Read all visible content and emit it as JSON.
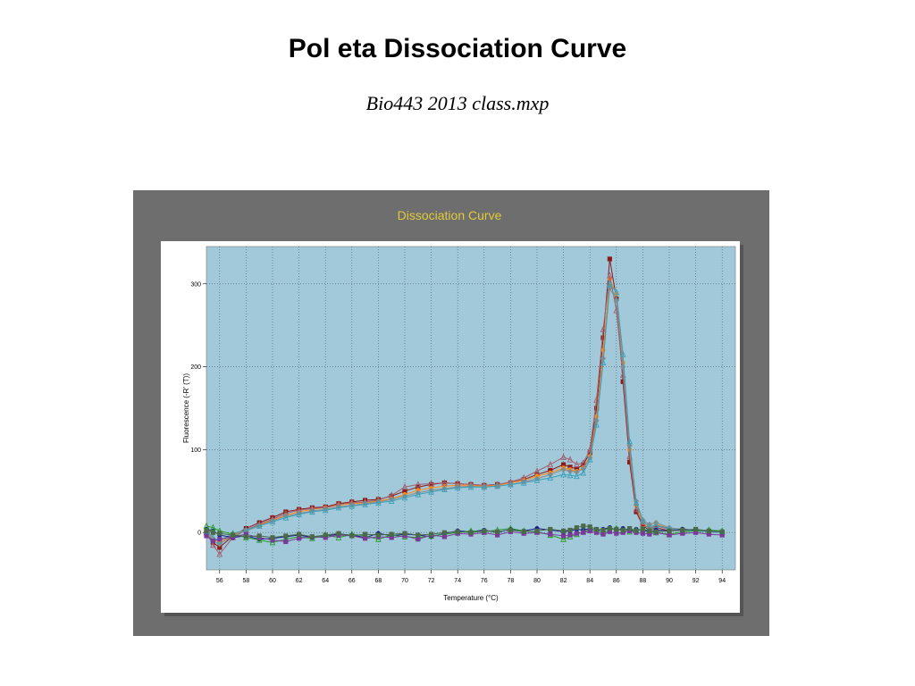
{
  "slide": {
    "title": "Pol eta Dissociation Curve",
    "subtitle": "Bio443 2013 class.mxp"
  },
  "colors": {
    "frame": "#6e6e6e",
    "plot_background": "#a2c9da",
    "chart_title": "#e2c93a"
  },
  "chart_data": {
    "type": "line",
    "title": "Dissociation Curve",
    "xlabel": "Temperature (°C)",
    "ylabel": "Fluorescence (-R' (T))",
    "xlim": [
      55,
      95
    ],
    "ylim": [
      -45,
      345
    ],
    "xticks": [
      56,
      58,
      60,
      62,
      64,
      66,
      68,
      70,
      72,
      74,
      76,
      78,
      80,
      82,
      84,
      86,
      88,
      90,
      92,
      94
    ],
    "yticks": [
      0,
      100,
      200,
      300
    ],
    "grid": true,
    "legend": "none",
    "x": [
      55,
      55.5,
      56,
      57,
      58,
      59,
      60,
      61,
      62,
      63,
      64,
      65,
      66,
      67,
      68,
      69,
      70,
      71,
      72,
      73,
      74,
      75,
      76,
      77,
      78,
      79,
      80,
      81,
      82,
      82.5,
      83,
      83.5,
      84,
      84.5,
      85,
      85.5,
      86,
      86.5,
      87,
      87.5,
      88,
      88.5,
      89,
      90,
      91,
      92,
      93,
      94
    ],
    "series": [
      {
        "color": "#8b1a1a",
        "marker": "square",
        "values": [
          3,
          -12,
          -18,
          -4,
          5,
          12,
          18,
          25,
          28,
          30,
          31,
          35,
          37,
          39,
          40,
          44,
          50,
          55,
          58,
          60,
          59,
          58,
          57,
          58,
          60,
          64,
          70,
          75,
          82,
          79,
          77,
          82,
          96,
          150,
          235,
          330,
          282,
          182,
          85,
          25,
          8,
          3,
          6,
          2,
          3,
          2,
          1,
          0
        ]
      },
      {
        "color": "#ff8c1a",
        "marker": "circle",
        "values": [
          2,
          -8,
          -12,
          -2,
          3,
          9,
          15,
          21,
          25,
          28,
          30,
          33,
          35,
          36,
          38,
          41,
          46,
          51,
          54,
          56,
          57,
          57,
          56,
          57,
          60,
          63,
          68,
          72,
          78,
          76,
          74,
          78,
          92,
          140,
          220,
          306,
          288,
          205,
          100,
          33,
          12,
          6,
          10,
          5,
          4,
          3,
          2,
          1
        ]
      },
      {
        "color": "#a06070",
        "marker": "triangle",
        "values": [
          0,
          -15,
          -26,
          -6,
          3,
          10,
          16,
          23,
          27,
          29,
          30,
          34,
          36,
          37,
          39,
          45,
          55,
          58,
          59,
          60,
          59,
          58,
          57,
          58,
          61,
          66,
          74,
          82,
          91,
          88,
          82,
          84,
          100,
          160,
          245,
          310,
          268,
          190,
          92,
          28,
          10,
          5,
          8,
          4,
          3,
          2,
          1,
          0
        ]
      },
      {
        "color": "#8a8a8a",
        "marker": "diamond",
        "values": [
          1,
          -10,
          -14,
          -3,
          2,
          8,
          14,
          20,
          23,
          26,
          28,
          31,
          33,
          35,
          37,
          40,
          44,
          48,
          51,
          53,
          55,
          56,
          55,
          56,
          58,
          61,
          65,
          70,
          76,
          74,
          73,
          77,
          90,
          135,
          210,
          295,
          280,
          200,
          105,
          38,
          15,
          10,
          12,
          6,
          4,
          3,
          2,
          1
        ]
      },
      {
        "color": "#3aa0b8",
        "marker": "triangle",
        "values": [
          2,
          -6,
          -10,
          -1,
          3,
          8,
          13,
          18,
          22,
          25,
          27,
          30,
          32,
          34,
          36,
          38,
          42,
          46,
          49,
          52,
          54,
          55,
          55,
          56,
          58,
          60,
          63,
          66,
          70,
          69,
          68,
          72,
          88,
          130,
          205,
          300,
          290,
          215,
          110,
          36,
          14,
          7,
          9,
          5,
          3,
          2,
          1,
          0
        ]
      },
      {
        "color": "#1a1a8c",
        "marker": "circle",
        "values": [
          4,
          2,
          -3,
          -6,
          -4,
          -8,
          -7,
          -5,
          -3,
          -6,
          -4,
          -2,
          -3,
          -6,
          -1,
          -4,
          -2,
          -3,
          -5,
          -1,
          2,
          1,
          3,
          0,
          4,
          2,
          5,
          3,
          1,
          2,
          4,
          3,
          5,
          2,
          4,
          6,
          3,
          5,
          2,
          4,
          3,
          1,
          3,
          2,
          4,
          3,
          2,
          1
        ]
      },
      {
        "color": "#2a9a2a",
        "marker": "triangle",
        "values": [
          8,
          6,
          2,
          -2,
          -6,
          -9,
          -12,
          -8,
          -5,
          -7,
          -3,
          -6,
          -2,
          -4,
          -8,
          -3,
          -5,
          -6,
          -4,
          -2,
          0,
          2,
          1,
          3,
          5,
          2,
          1,
          -3,
          -8,
          -5,
          -2,
          1,
          4,
          2,
          0,
          3,
          5,
          2,
          1,
          3,
          4,
          2,
          0,
          -2,
          1,
          2,
          3,
          2
        ]
      },
      {
        "color": "#7a3a9a",
        "marker": "square",
        "values": [
          -4,
          -10,
          -8,
          -5,
          -2,
          -6,
          -9,
          -11,
          -7,
          -5,
          -6,
          -3,
          -4,
          -7,
          -5,
          -6,
          -4,
          -8,
          -3,
          -5,
          -1,
          -2,
          0,
          -3,
          1,
          -1,
          0,
          -2,
          -4,
          -3,
          -1,
          0,
          2,
          0,
          -2,
          1,
          -1,
          0,
          2,
          0,
          -1,
          -2,
          0,
          -3,
          -1,
          0,
          -2,
          -3
        ]
      },
      {
        "color": "#4a6a4a",
        "marker": "square",
        "values": [
          2,
          0,
          -1,
          -3,
          -5,
          -4,
          -6,
          -4,
          -2,
          -5,
          -3,
          -1,
          -4,
          -2,
          -3,
          -2,
          -1,
          -3,
          -2,
          0,
          1,
          0,
          2,
          1,
          3,
          1,
          2,
          4,
          2,
          3,
          6,
          8,
          7,
          4,
          3,
          5,
          4,
          3,
          5,
          2,
          4,
          2,
          1,
          2,
          3,
          4,
          2,
          1
        ]
      }
    ]
  }
}
